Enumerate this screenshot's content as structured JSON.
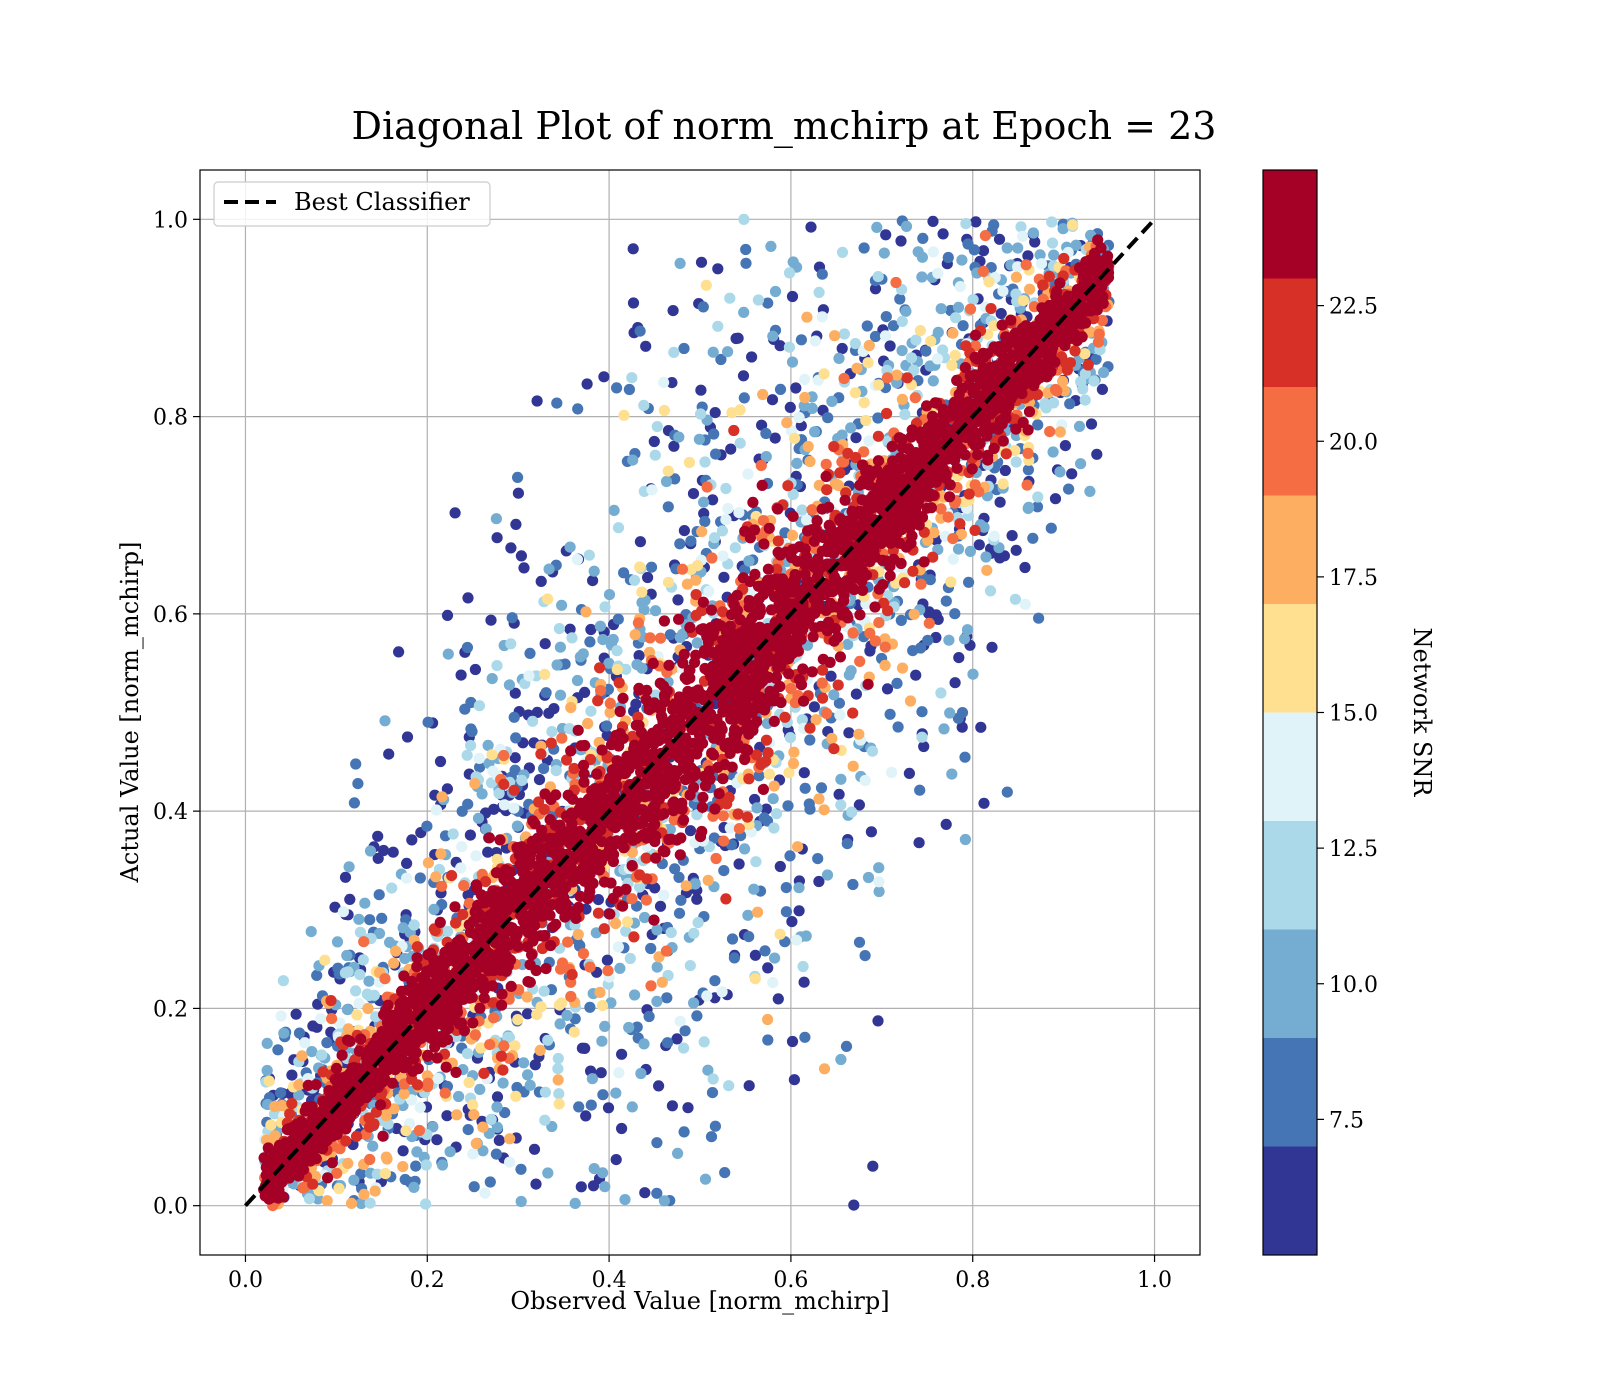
{
  "chart_data": {
    "type": "scatter",
    "title": "Diagonal Plot of norm_mchirp at Epoch = 23",
    "xlabel": "Observed Value [norm_mchirp]",
    "ylabel": "Actual Value [norm_mchirp]",
    "xlim": [
      -0.05,
      1.05
    ],
    "ylim": [
      -0.05,
      1.05
    ],
    "xticks": [
      "0.0",
      "0.2",
      "0.4",
      "0.6",
      "0.8",
      "1.0"
    ],
    "yticks": [
      "0.0",
      "0.2",
      "0.4",
      "0.6",
      "0.8",
      "1.0"
    ],
    "grid": true,
    "legend": {
      "position": "top-left",
      "entries": [
        {
          "label": "Best Classifier",
          "style": "black dashed line"
        }
      ]
    },
    "reference_line": {
      "name": "Best Classifier",
      "x": [
        0.0,
        1.0
      ],
      "y": [
        0.0,
        1.0
      ],
      "color": "#000000",
      "dash": true
    },
    "colorbar": {
      "label": "Network SNR",
      "colormap": "RdYlBu_r",
      "range": [
        5.0,
        25.0
      ],
      "ticks": [
        "7.5",
        "10.0",
        "12.5",
        "15.0",
        "17.5",
        "20.0",
        "22.5"
      ],
      "bins": [
        {
          "lo": 5.0,
          "hi": 7.0,
          "color": "#313695"
        },
        {
          "lo": 7.0,
          "hi": 9.0,
          "color": "#4575b4"
        },
        {
          "lo": 9.0,
          "hi": 11.0,
          "color": "#74add1"
        },
        {
          "lo": 11.0,
          "hi": 13.0,
          "color": "#abd9e9"
        },
        {
          "lo": 13.0,
          "hi": 15.0,
          "color": "#e0f3f8"
        },
        {
          "lo": 15.0,
          "hi": 17.0,
          "color": "#fee090"
        },
        {
          "lo": 17.0,
          "hi": 19.0,
          "color": "#fdae61"
        },
        {
          "lo": 19.0,
          "hi": 21.0,
          "color": "#f46d43"
        },
        {
          "lo": 21.0,
          "hi": 23.0,
          "color": "#d73027"
        },
        {
          "lo": 23.0,
          "hi": 25.0,
          "color": "#a50026"
        }
      ]
    },
    "scatter_model": {
      "description": "Points cluster around y = x; spread shrinks as Network SNR grows",
      "x_range": [
        0.02,
        0.95
      ],
      "spread_sd_by_snr": [
        {
          "snr": 5.0,
          "sd": 0.2
        },
        {
          "snr": 25.0,
          "sd": 0.02
        }
      ],
      "value_range": [
        0.0,
        1.0
      ],
      "approx_point_count": 7000
    }
  }
}
